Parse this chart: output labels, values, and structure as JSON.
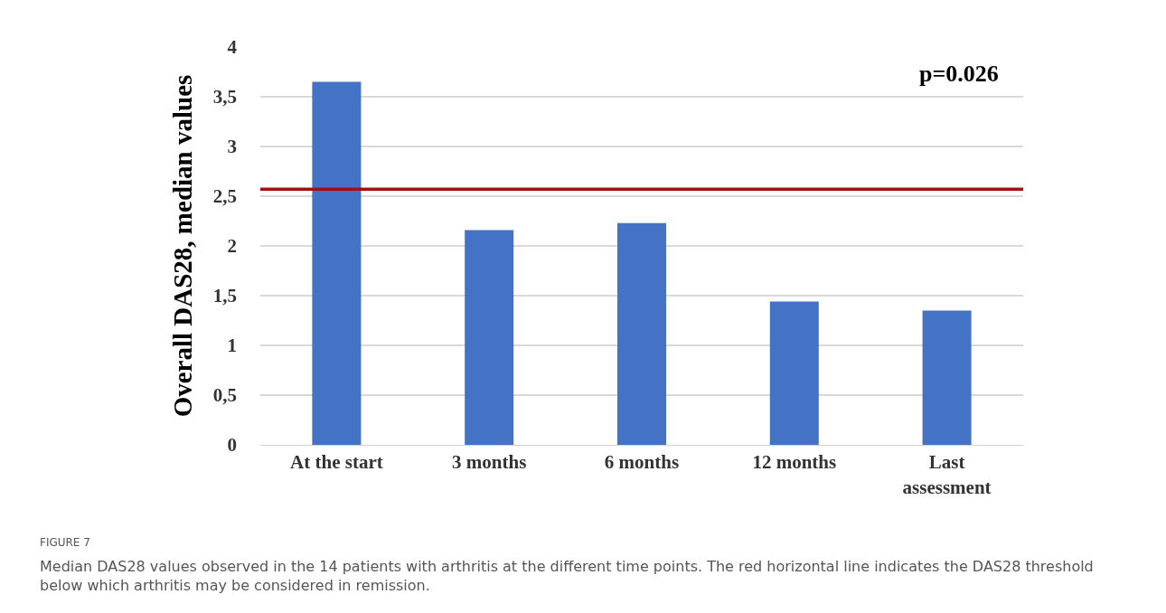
{
  "chart_data": {
    "type": "bar",
    "ylabel": "Overall DAS28, median values",
    "categories": [
      "At the start",
      "3 months",
      "6 months",
      "12 months",
      "Last assessment"
    ],
    "values": [
      3.65,
      2.16,
      2.23,
      1.44,
      1.35
    ],
    "color": "#4472c4",
    "ylim": [
      0,
      4
    ],
    "yticks": [
      0,
      {
        "value": 0.5,
        "label": "0,5"
      },
      1,
      {
        "value": 1.5,
        "label": "1,5"
      },
      2,
      {
        "value": 2.5,
        "label": "2,5"
      },
      3,
      {
        "value": 3.5,
        "label": "3,5"
      },
      4
    ],
    "grid": "y",
    "ref_lines": [
      {
        "axis": "y",
        "value": 2.57,
        "color": "#a50f0f"
      }
    ],
    "annotations": [
      "p=0.026",
      "FIGURE 7",
      "Median DAS28 values observed in the 14 patients with arthritis at the different time points. The red horizontal line indicates the DAS28 threshold below which arthritis may be considered in remission."
    ]
  }
}
